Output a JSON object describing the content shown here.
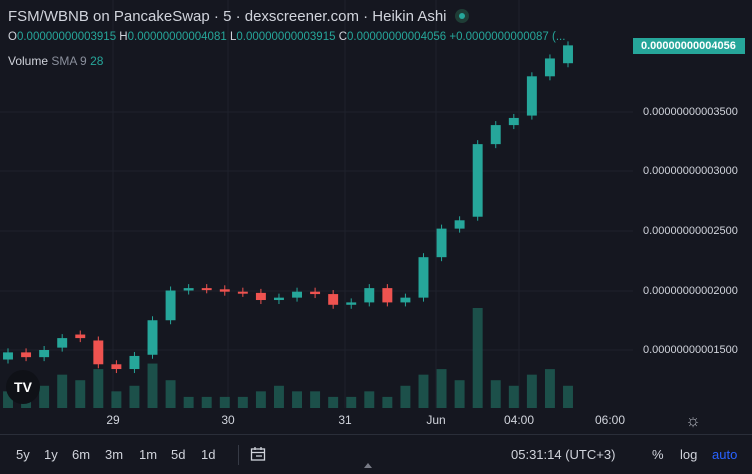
{
  "header": {
    "title": "FSM/WBNB on PancakeSwap · 5 · dexscreener.com · Heikin Ashi"
  },
  "ohlc": {
    "o_label": "O",
    "o": "0.00000000003915",
    "h_label": "H",
    "h": "0.00000000004081",
    "l_label": "L",
    "l": "0.00000000003915",
    "c_label": "C",
    "c": "0.00000000004056",
    "chg": "+0.0000000000087 (..."
  },
  "volume": {
    "label": "Volume",
    "ma": "SMA 9",
    "value": "28"
  },
  "price_axis": {
    "current": "0.00000000004056",
    "labels": [
      "0.00000000003500",
      "0.00000000003000",
      "0.00000000002500",
      "0.00000000002000",
      "0.00000000001500"
    ]
  },
  "time_axis": {
    "labels": [
      "29",
      "30",
      "31",
      "Jun",
      "04:00",
      "06:00"
    ]
  },
  "bottom_bar": {
    "ranges": [
      "5y",
      "1y",
      "6m",
      "3m",
      "1m",
      "5d",
      "1d"
    ],
    "time": "05:31:14 (UTC+3)",
    "percent": "%",
    "log": "log",
    "auto": "auto"
  },
  "logo": {
    "text": "TV"
  },
  "colors": {
    "up": "#26a69a",
    "down": "#ef5350",
    "background": "#151720",
    "accent": "#2962ff"
  },
  "chart_data": {
    "type": "candlestick",
    "style": "Heikin Ashi",
    "y_unit": "price (WBNB)",
    "ylim": [
      1.25e-11,
      4.2e-11
    ],
    "x": [
      "May 28 17:00",
      "May 29 00:00",
      "May 30 00:00",
      "May 31 00:00",
      "Jun 01 00:00",
      "Jun 01 04:00",
      "Jun 01 06:00"
    ],
    "candles": [
      [
        1.42e-11,
        1.48e-11
      ],
      [
        1.48e-11,
        1.44e-11
      ],
      [
        1.44e-11,
        1.5e-11
      ],
      [
        1.52e-11,
        1.6e-11
      ],
      [
        1.63e-11,
        1.6e-11
      ],
      [
        1.58e-11,
        1.38e-11
      ],
      [
        1.38e-11,
        1.34e-11
      ],
      [
        1.34e-11,
        1.45e-11
      ],
      [
        1.46e-11,
        1.75e-11
      ],
      [
        1.75e-11,
        2e-11
      ],
      [
        2e-11,
        2.02e-11
      ],
      [
        2.02e-11,
        2.01e-11
      ],
      [
        2.01e-11,
        1.99e-11
      ],
      [
        1.99e-11,
        1.98e-11
      ],
      [
        1.98e-11,
        1.92e-11
      ],
      [
        1.92e-11,
        1.94e-11
      ],
      [
        1.94e-11,
        1.99e-11
      ],
      [
        1.99e-11,
        1.97e-11
      ],
      [
        1.97e-11,
        1.88e-11
      ],
      [
        1.88e-11,
        1.9e-11
      ],
      [
        1.9e-11,
        2.02e-11
      ],
      [
        2.02e-11,
        1.9e-11
      ],
      [
        1.9e-11,
        1.94e-11
      ],
      [
        1.94e-11,
        2.28e-11
      ],
      [
        2.28e-11,
        2.52e-11
      ],
      [
        2.52e-11,
        2.59e-11
      ],
      [
        2.62e-11,
        3.23e-11
      ],
      [
        3.23e-11,
        3.39e-11
      ],
      [
        3.39e-11,
        3.45e-11
      ],
      [
        3.47e-11,
        3.8e-11
      ],
      [
        3.8e-11,
        3.95e-11
      ],
      [
        3.91e-11,
        4.06e-11
      ]
    ],
    "volume_bars": [
      3,
      3,
      4,
      6,
      5,
      7,
      3,
      4,
      8,
      5,
      2,
      2,
      2,
      2,
      3,
      4,
      3,
      3,
      2,
      2,
      3,
      2,
      4,
      6,
      7,
      5,
      18,
      5,
      4,
      6,
      7,
      4
    ]
  }
}
